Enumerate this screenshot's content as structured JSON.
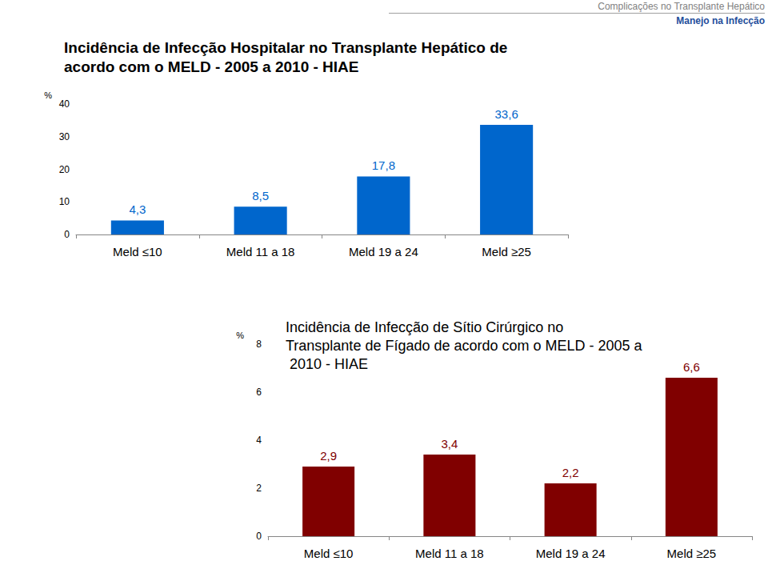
{
  "header": {
    "title": "Complicações no Transplante Hepático",
    "subtitle": "Manejo na Infecção"
  },
  "chart_data": [
    {
      "type": "bar",
      "title": "Incidência de Infecção Hospitalar no Transplante Hepático de acordo com o MELD - 2005 a 2010 - HIAE",
      "y_label": "%",
      "categories": [
        "Meld ≤10",
        "Meld 11 a 18",
        "Meld 19 a 24",
        "Meld ≥25"
      ],
      "values": [
        4.3,
        8.5,
        17.8,
        33.6
      ],
      "value_labels": [
        "4,3",
        "8,5",
        "17,8",
        "33,6"
      ],
      "color": "#0066cc",
      "ylim": [
        0,
        40
      ],
      "yticks": [
        0,
        10,
        20,
        30,
        40
      ],
      "grid": false,
      "data_labels": true
    },
    {
      "type": "bar",
      "title": "Incidência de Infecção de Sítio Cirúrgico no Transplante de Fígado de acordo com o MELD - 2005 a 2010 - HIAE",
      "y_label": "%",
      "categories": [
        "Meld ≤10",
        "Meld 11 a 18",
        "Meld 19 a 24",
        "Meld ≥25"
      ],
      "values": [
        2.9,
        3.4,
        2.2,
        6.6
      ],
      "value_labels": [
        "2,9",
        "3,4",
        "2,2",
        "6,6"
      ],
      "color": "#800000",
      "ylim": [
        0,
        8
      ],
      "yticks": [
        0,
        2,
        4,
        6,
        8
      ],
      "grid": false,
      "data_labels": true
    }
  ]
}
